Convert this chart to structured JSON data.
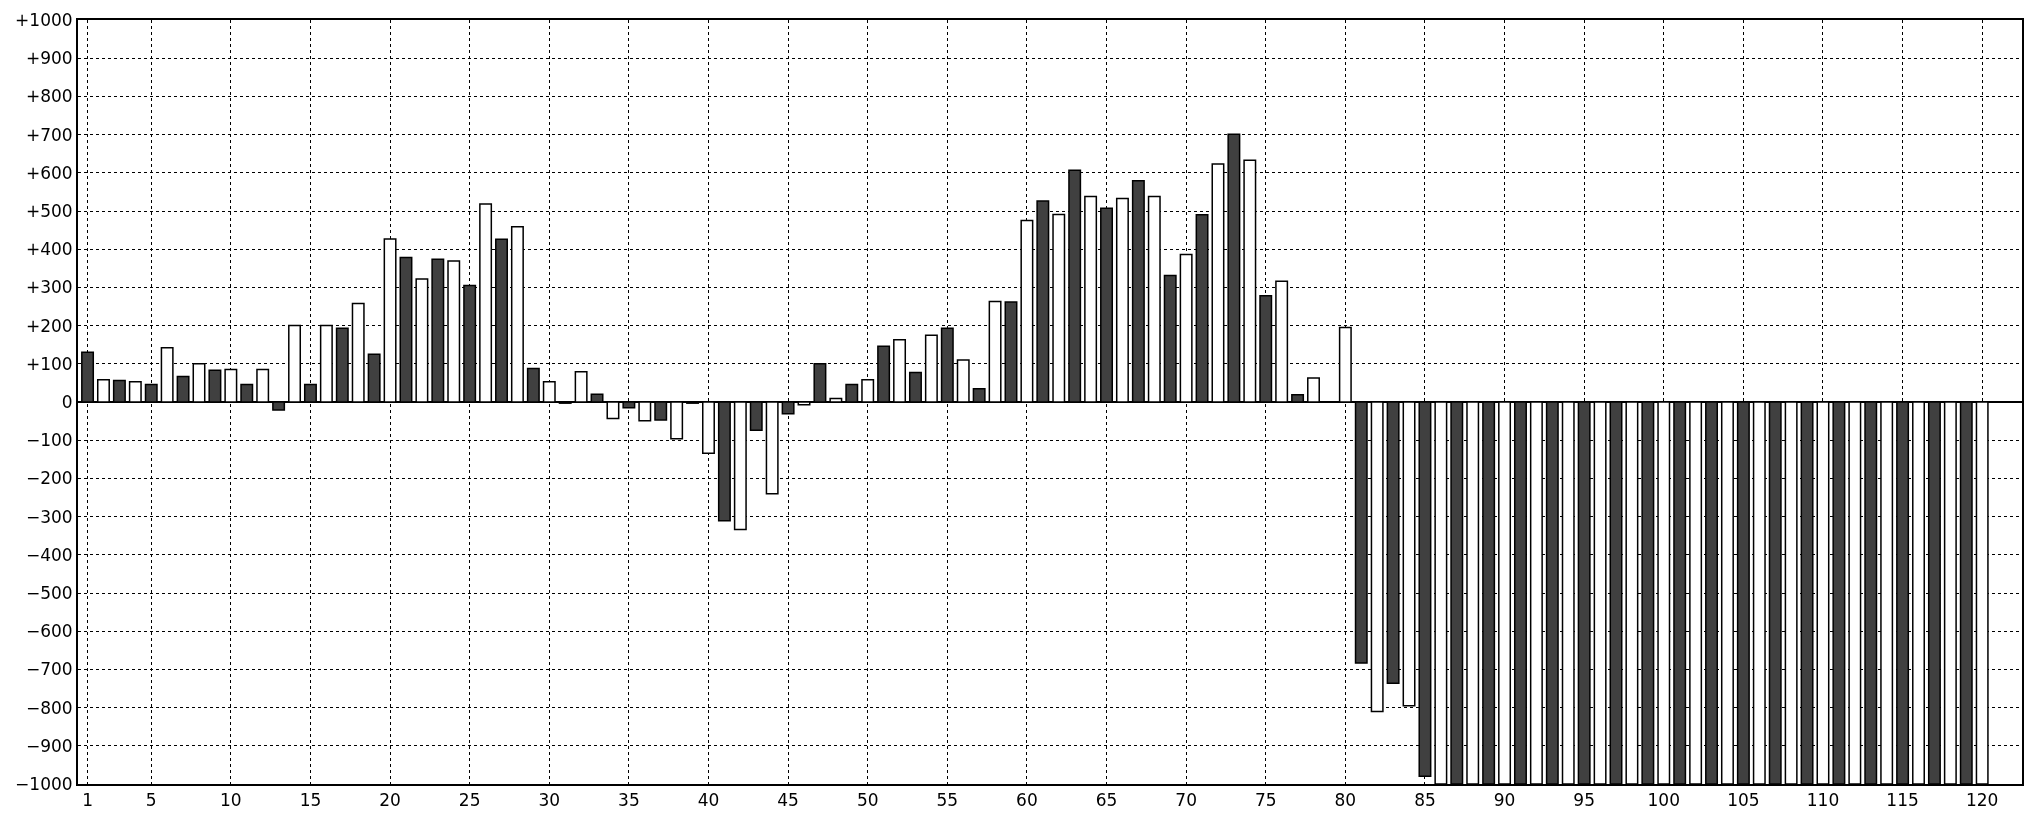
{
  "chart_data": {
    "type": "bar",
    "grid": true,
    "xlim": [
      0.4,
      122.5
    ],
    "xticks": [
      1,
      5,
      10,
      15,
      20,
      25,
      30,
      35,
      40,
      45,
      50,
      55,
      60,
      65,
      70,
      75,
      80,
      85,
      90,
      95,
      100,
      105,
      110,
      115,
      120
    ],
    "ylim": [
      -1000,
      1000
    ],
    "yticks": [
      {
        "value": -1000,
        "label": "−1000"
      },
      {
        "value": -900,
        "label": "−900"
      },
      {
        "value": -800,
        "label": "−800"
      },
      {
        "value": -700,
        "label": "−700"
      },
      {
        "value": -600,
        "label": "−600"
      },
      {
        "value": -500,
        "label": "−500"
      },
      {
        "value": -400,
        "label": "−400"
      },
      {
        "value": -300,
        "label": "−300"
      },
      {
        "value": -200,
        "label": "−200"
      },
      {
        "value": -100,
        "label": "−100"
      },
      0,
      {
        "value": 100,
        "label": "+100"
      },
      {
        "value": 200,
        "label": "+200"
      },
      {
        "value": 300,
        "label": "+300"
      },
      {
        "value": 400,
        "label": "+400"
      },
      {
        "value": 500,
        "label": "+500"
      },
      {
        "value": 600,
        "label": "+600"
      },
      {
        "value": 700,
        "label": "+700"
      },
      {
        "value": 800,
        "label": "+800"
      },
      {
        "value": 900,
        "label": "+900"
      },
      {
        "value": 1000,
        "label": "+1000"
      }
    ],
    "series": [
      {
        "color": "#404040",
        "x": [
          1,
          3,
          5,
          7,
          9,
          11,
          13,
          15,
          17,
          19,
          21,
          23,
          25,
          27,
          29,
          31,
          33,
          35,
          37,
          39,
          41,
          43,
          45,
          47,
          49,
          51,
          53,
          55,
          57,
          59,
          61,
          63,
          65,
          67,
          69,
          71,
          73,
          75,
          77,
          79,
          81,
          83,
          85,
          87,
          89,
          91,
          93,
          95,
          97,
          99,
          101,
          103,
          105,
          107,
          109,
          111,
          113,
          115,
          117,
          119
        ],
        "values": [
          130,
          56,
          46,
          67,
          83,
          46,
          -21,
          46,
          193,
          125,
          378,
          374,
          305,
          426,
          88,
          -3,
          20,
          -15,
          -47,
          -3,
          -311,
          -74,
          -31,
          100,
          46,
          146,
          77,
          193,
          35,
          262,
          526,
          607,
          507,
          579,
          331,
          490,
          701,
          278,
          19,
          null,
          -683,
          -736,
          -980,
          -1000,
          -1000,
          -1000,
          -1000,
          -1000,
          -1000,
          -1000,
          -1000,
          -1000,
          -1000,
          -1000,
          -1000,
          -1000,
          -1000,
          -1000,
          -1000,
          -1000
        ]
      },
      {
        "color": "#ffffff",
        "x": [
          2,
          4,
          6,
          8,
          10,
          12,
          14,
          16,
          18,
          20,
          22,
          24,
          26,
          28,
          30,
          32,
          34,
          36,
          38,
          40,
          42,
          44,
          46,
          48,
          50,
          52,
          54,
          56,
          58,
          60,
          62,
          64,
          66,
          68,
          70,
          72,
          74,
          76,
          78,
          80,
          82,
          84,
          86,
          88,
          90,
          92,
          94,
          96,
          98,
          100,
          102,
          104,
          106,
          108,
          110,
          112,
          114,
          116,
          118,
          120
        ],
        "values": [
          58,
          53,
          142,
          100,
          85,
          85,
          200,
          200,
          258,
          427,
          322,
          369,
          518,
          459,
          53,
          79,
          -43,
          -49,
          -96,
          -134,
          -334,
          -240,
          -7,
          9,
          58,
          163,
          175,
          110,
          263,
          475,
          491,
          538,
          533,
          538,
          386,
          623,
          633,
          316,
          63,
          195,
          -810,
          -795,
          -1000,
          -1000,
          -1000,
          -1000,
          -1000,
          -1000,
          -1000,
          -1000,
          -1000,
          -1000,
          -1000,
          -1000,
          -1000,
          -1000,
          -1000,
          -1000,
          -1000,
          -1000
        ]
      }
    ]
  }
}
